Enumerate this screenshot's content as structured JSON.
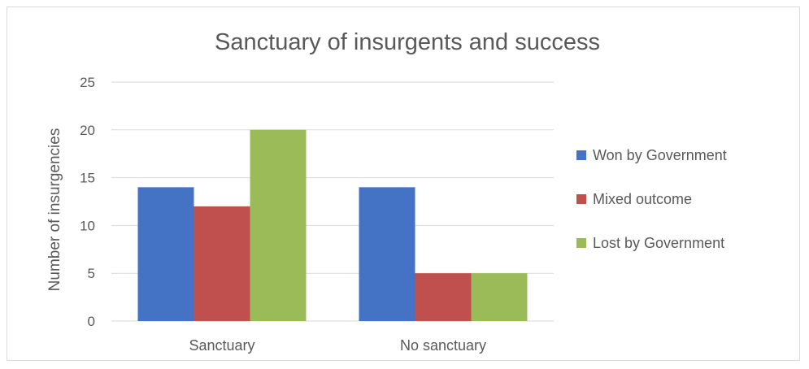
{
  "chart_data": {
    "type": "bar",
    "title": "Sanctuary of insurgents and success",
    "xlabel": "",
    "ylabel": "Number of insurgencies",
    "categories": [
      "Sanctuary",
      "No sanctuary"
    ],
    "series": [
      {
        "name": "Won by Government",
        "values": [
          14,
          14
        ],
        "color": "#4472c4"
      },
      {
        "name": "Mixed outcome",
        "values": [
          12,
          5
        ],
        "color": "#c0504d"
      },
      {
        "name": "Lost by Government",
        "values": [
          20,
          5
        ],
        "color": "#9bbb59"
      }
    ],
    "ylim": [
      0,
      25
    ],
    "yticks": [
      0,
      5,
      10,
      15,
      20,
      25
    ],
    "grid": true,
    "legend_position": "right"
  }
}
